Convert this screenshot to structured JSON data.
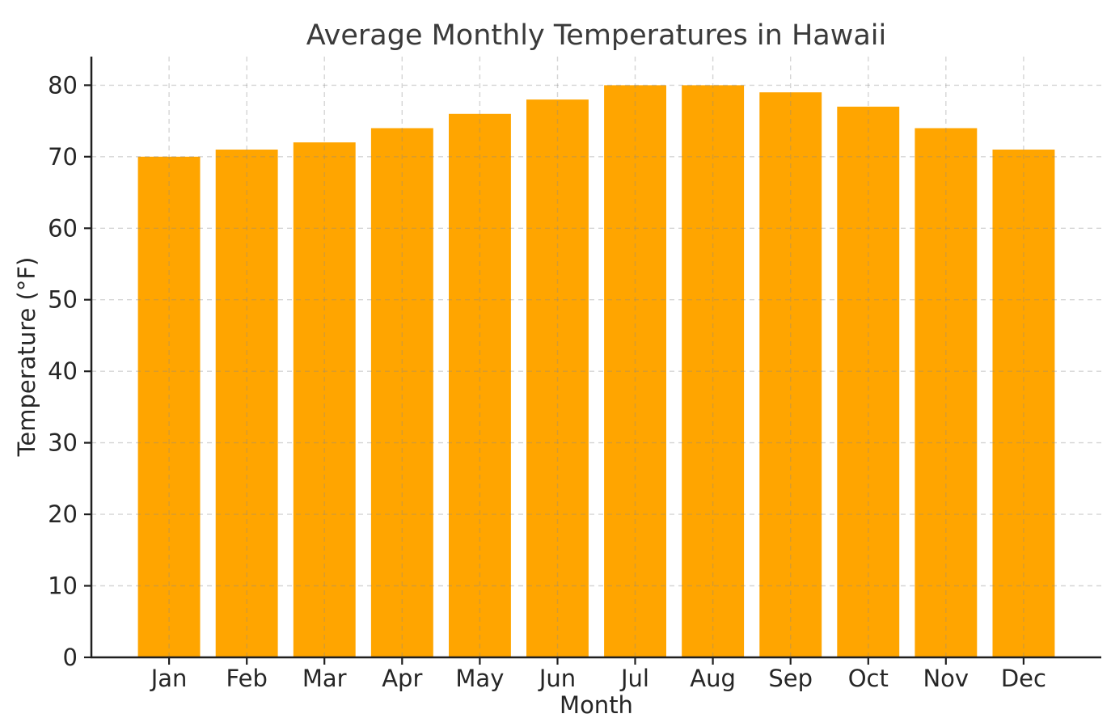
{
  "chart_data": {
    "type": "bar",
    "title": "Average Monthly Temperatures in Hawaii",
    "xlabel": "Month",
    "ylabel": "Temperature (°F)",
    "categories": [
      "Jan",
      "Feb",
      "Mar",
      "Apr",
      "May",
      "Jun",
      "Jul",
      "Aug",
      "Sep",
      "Oct",
      "Nov",
      "Dec"
    ],
    "values": [
      70,
      71,
      72,
      74,
      76,
      78,
      80,
      80,
      79,
      77,
      74,
      71
    ],
    "ylim": [
      0,
      84
    ],
    "yticks": [
      0,
      10,
      20,
      30,
      40,
      50,
      60,
      70,
      80
    ],
    "bar_color": "#FFA500",
    "axis_color": "#1f1f1f",
    "tick_label_color": "#262626",
    "title_color": "#3a3a3a",
    "grid_color": "#8a8a8a",
    "grid_style": "dashed",
    "grid_axes": "both",
    "legend": "none"
  }
}
